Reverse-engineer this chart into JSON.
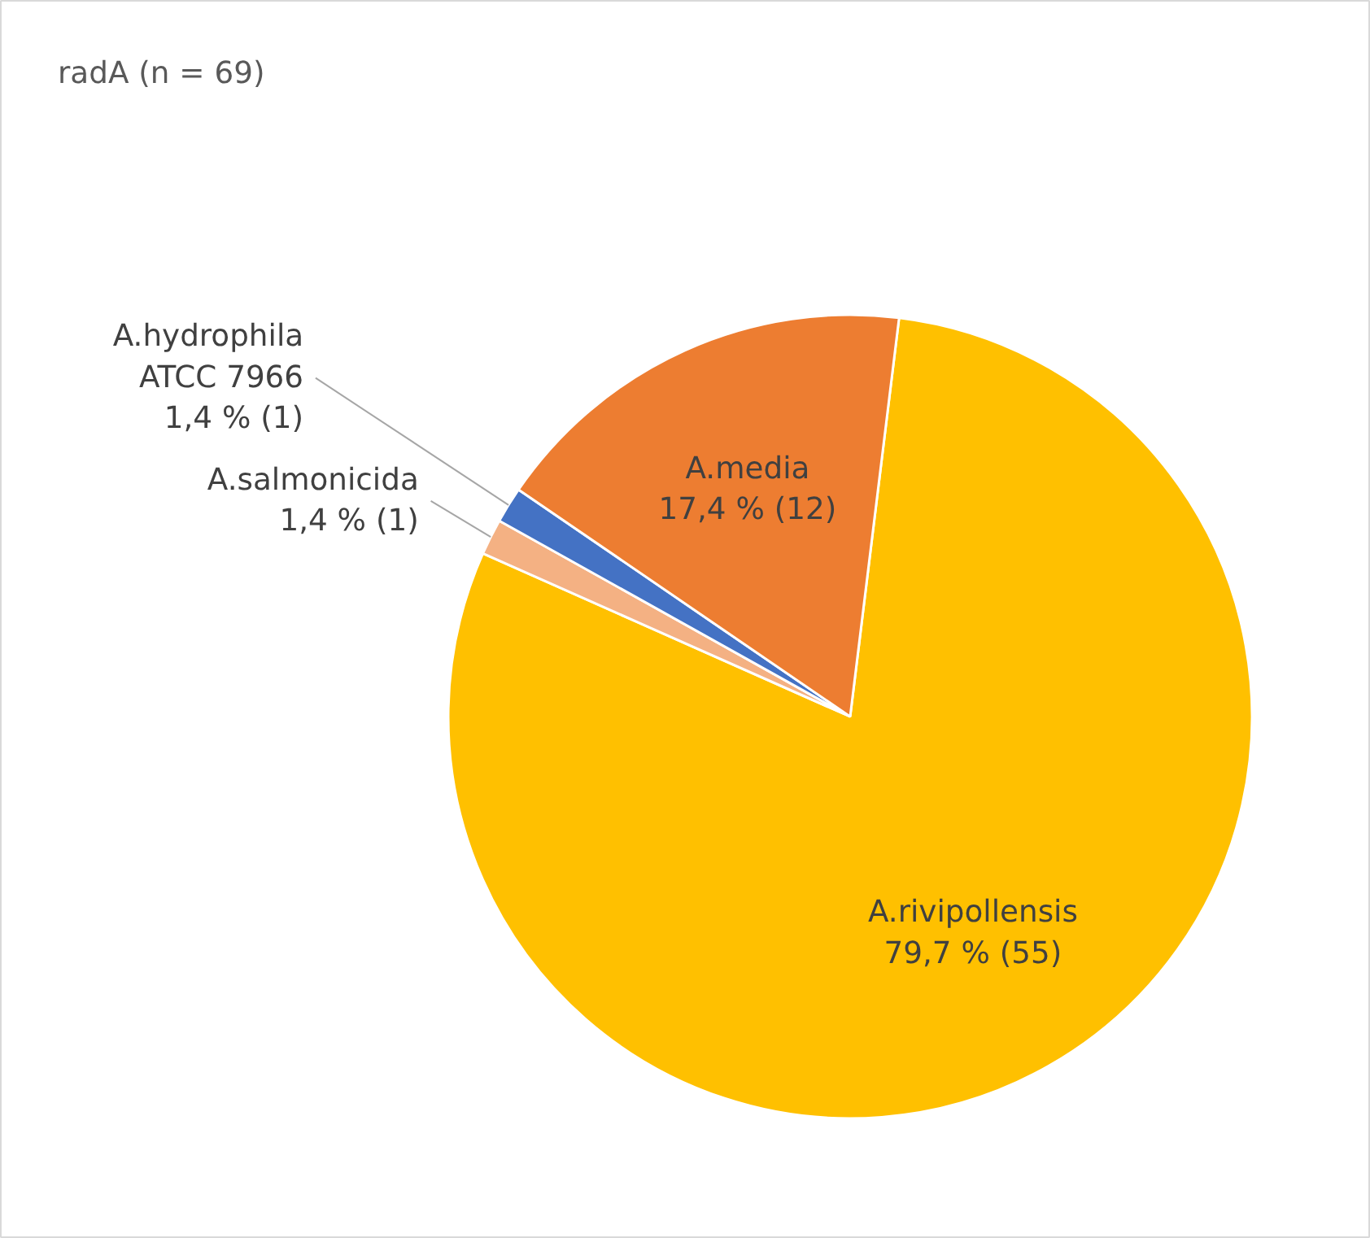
{
  "chart_data": {
    "type": "pie",
    "title": "radA (n = 69)",
    "categories": [
      "A.rivipollensis",
      "A.salmonicida",
      "A.hydrophila\nATCC 7966",
      "A.media"
    ],
    "values": [
      55,
      1,
      1,
      12
    ],
    "colors": [
      "#ffc000",
      "#f4b183",
      "#4472c4",
      "#ed7d31"
    ],
    "value_labels": [
      "79,7 % (55)",
      "1,4 % (1)",
      "1,4 % (1)",
      "17,4 % (12)"
    ]
  }
}
